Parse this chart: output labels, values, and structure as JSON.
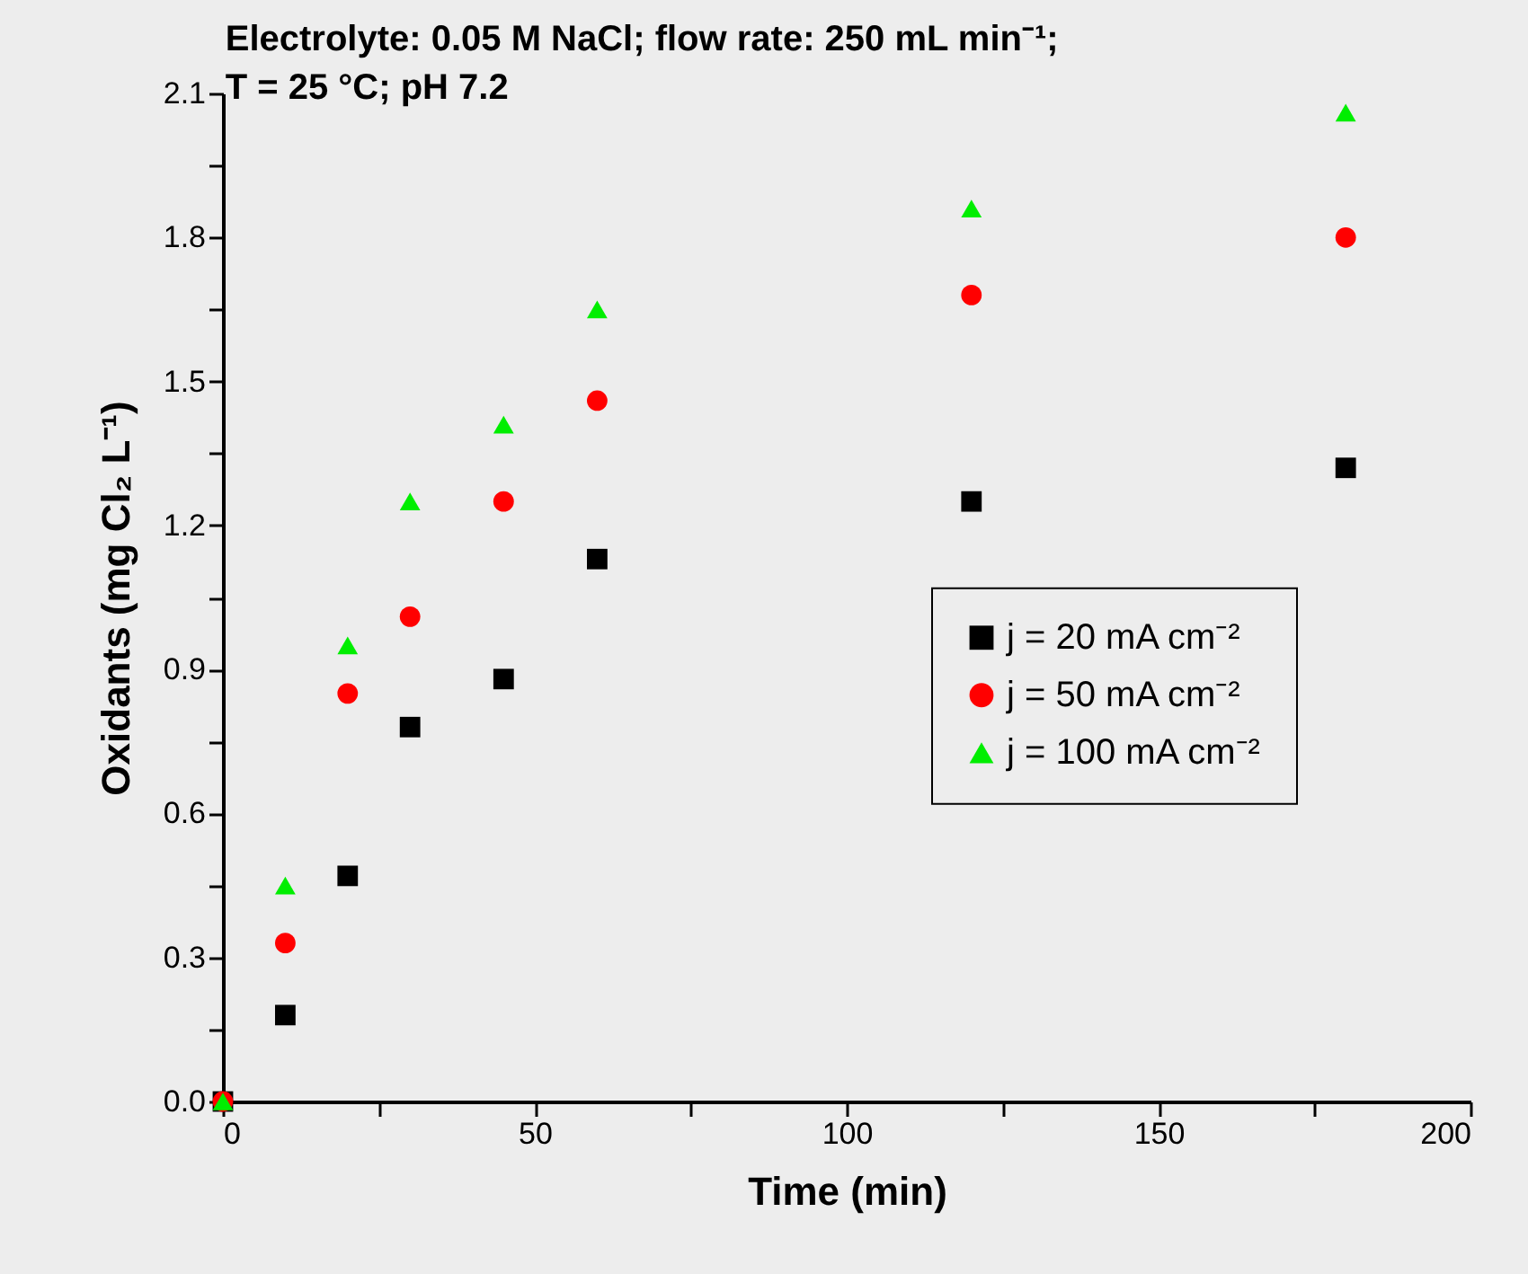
{
  "chart_data": {
    "type": "scatter",
    "title": [
      "Electrolyte: 0.05 M NaCl; flow rate: 250 mL min⁻¹;",
      "T = 25 °C; pH 7.2"
    ],
    "xlabel": "Time (min)",
    "ylabel": "Oxidants (mg Cl₂ L⁻¹)",
    "x": [
      0,
      10,
      20,
      30,
      45,
      60,
      120,
      180
    ],
    "series": [
      {
        "name": "j = 20 mA cm⁻²",
        "color": "#000000",
        "marker": "square",
        "values": [
          0,
          0.18,
          0.47,
          0.78,
          0.88,
          1.13,
          1.25,
          1.32
        ]
      },
      {
        "name": "j = 50 mA cm⁻²",
        "color": "#ff0000",
        "marker": "circle",
        "values": [
          0,
          0.33,
          0.85,
          1.01,
          1.25,
          1.46,
          1.68,
          1.8
        ]
      },
      {
        "name": "j = 100 mA cm⁻²",
        "color": "#00ee00",
        "marker": "triangle",
        "values": [
          0,
          0.45,
          0.95,
          1.25,
          1.41,
          1.65,
          1.86,
          2.06
        ]
      }
    ],
    "xlim": [
      0,
      200
    ],
    "xticks": [
      0,
      {
        "value": 25,
        "label": null
      },
      50,
      {
        "value": 75,
        "label": null
      },
      100,
      {
        "value": 125,
        "label": null
      },
      150,
      {
        "value": 175,
        "label": null
      },
      200
    ],
    "ylim": [
      0,
      2.1
    ],
    "yticks": [
      {
        "value": 0,
        "label": "0.0"
      },
      {
        "value": 0.15,
        "label": null
      },
      0.3,
      {
        "value": 0.45,
        "label": null
      },
      0.6,
      {
        "value": 0.75,
        "label": null
      },
      0.9,
      {
        "value": 1.05,
        "label": null
      },
      1.2,
      {
        "value": 1.35,
        "label": null
      },
      1.5,
      {
        "value": 1.65,
        "label": null
      },
      1.8,
      {
        "value": 1.95,
        "label": null
      },
      2.1
    ],
    "grid": false,
    "legend": "right"
  }
}
